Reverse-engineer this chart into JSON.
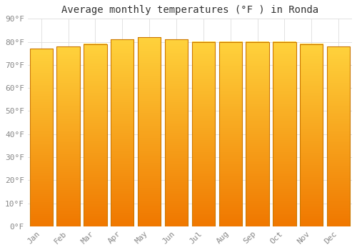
{
  "title": "Average monthly temperatures (°F ) in Ronda",
  "categories": [
    "Jan",
    "Feb",
    "Mar",
    "Apr",
    "May",
    "Jun",
    "Jul",
    "Aug",
    "Sep",
    "Oct",
    "Nov",
    "Dec"
  ],
  "values": [
    77,
    78,
    79,
    81,
    82,
    81,
    80,
    80,
    80,
    80,
    79,
    78
  ],
  "bar_color": "#FFA500",
  "bar_color_gradient_bottom": "#F07800",
  "bar_color_gradient_top": "#FFD040",
  "bar_edge_color": "#CC7700",
  "ylim": [
    0,
    90
  ],
  "yticks": [
    0,
    10,
    20,
    30,
    40,
    50,
    60,
    70,
    80,
    90
  ],
  "ytick_labels": [
    "0°F",
    "10°F",
    "20°F",
    "30°F",
    "40°F",
    "50°F",
    "60°F",
    "70°F",
    "80°F",
    "90°F"
  ],
  "background_color": "#FFFFFF",
  "grid_color": "#DDDDDD",
  "title_fontsize": 10,
  "tick_fontsize": 8,
  "font_family": "monospace",
  "tick_color": "#888888",
  "bar_width": 0.85
}
